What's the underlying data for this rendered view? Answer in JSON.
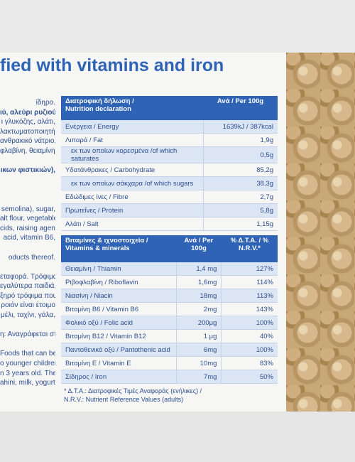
{
  "heading": "fied with vitamins and iron",
  "left_lines": [
    "ίδηρο.",
    "ιύ, αλεύρι ρυζιού,",
    "ι γλυκόζης, αλάτι,",
    "λακτωματοποιητής:",
    "ανθρακικό νάτριο,",
    "φλαβίνη, θειαμίνη,",
    "",
    "ικων φιστικιών),",
    "",
    "",
    "",
    "semolina), sugar,",
    "alt flour, vegetable",
    "cids, raising agent:",
    "acid, vitamin B6,",
    "",
    "oducts thereof.",
    "",
    "εταφορά. Τρόφιμα",
    "εγαλύτερα παιδιά,",
    "ξηρό τρόφιμα που",
    "ροιόν είναι έτοιμο",
    "μέλι, ταχίνι, γάλα,",
    "",
    "η: Αναγράφεται στη",
    "",
    "Foods that can be",
    "o younger children.",
    "n 3 years old. The",
    "ahini, milk, yogurt,"
  ],
  "nutrition": {
    "header_label": "Διατροφική δήλωση /\nNutrition declaration",
    "header_value": "Ανά / Per 100g",
    "rows": [
      {
        "label": "Ενέργεια / Energy",
        "value": "1639kJ / 387kcal"
      },
      {
        "label": "Λιπαρά / Fat",
        "value": "1,9g"
      },
      {
        "label": "εκ των οποίων κορεσμένα /of which saturates",
        "value": "0,5g"
      },
      {
        "label": "Υδατάνθρακες / Carbohydrate",
        "value": "85,2g"
      },
      {
        "label": "εκ των οποίων σάκχαρα /of which sugars",
        "value": "38,3g"
      },
      {
        "label": "Εδώδιμες ίνες / Fibre",
        "value": "2,7g"
      },
      {
        "label": "Πρωτεΐνες / Protein",
        "value": "5,8g"
      },
      {
        "label": "Αλάτι / Salt",
        "value": "1,15g"
      }
    ]
  },
  "vitamins": {
    "header_label": "Βιταμίνες & ιχνοστοιχεία /\nVitamins & minerals",
    "header_per": "Ανά / Per\n100g",
    "header_nrv": "% Δ.Τ.Α. / %\nN.R.V.*",
    "rows": [
      {
        "label": "Θειαμίνη / Thiamin",
        "per": "1,4 mg",
        "nrv": "127%"
      },
      {
        "label": "Ριβοφλαβίνη / Riboflavin",
        "per": "1,6mg",
        "nrv": "114%"
      },
      {
        "label": "Νιασίνη / Niacin",
        "per": "18mg",
        "nrv": "113%"
      },
      {
        "label": "Βιταμίνη Β6 / Vitamin B6",
        "per": "2mg",
        "nrv": "143%"
      },
      {
        "label": "Φολικό οξύ / Folic acid",
        "per": "200μg",
        "nrv": "100%"
      },
      {
        "label": "Βιταμίνη Β12 / Vitamin B12",
        "per": "1 μg",
        "nrv": "40%"
      },
      {
        "label": "Παντοθενικό οξύ / Pantothenic acid",
        "per": "6mg",
        "nrv": "100%"
      },
      {
        "label": "Βιταμίνη Ε / Vitamin E",
        "per": "10mg",
        "nrv": "83%"
      },
      {
        "label": "Σίδηρος / Iron",
        "per": "7mg",
        "nrv": "50%"
      }
    ]
  },
  "footnote": [
    "* Δ.Τ.Α.: Διατροφικές Τιμές Αναφοράς (ενήλικες) /",
    "N.R.V.: Nutrient Reference Values (adults)"
  ]
}
